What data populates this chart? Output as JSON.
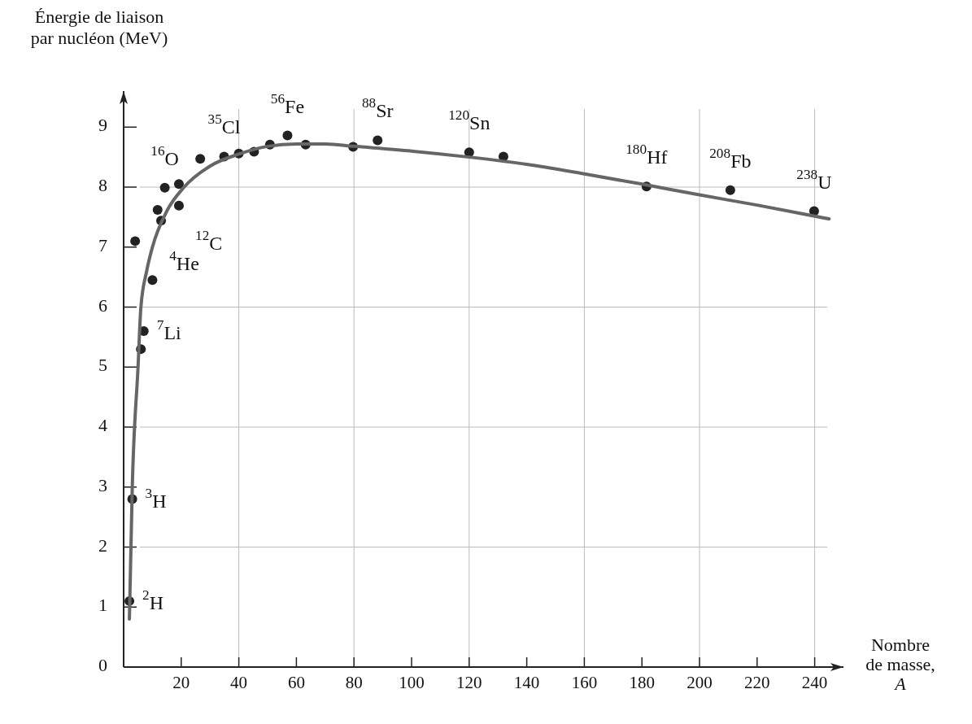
{
  "chart_data": {
    "type": "scatter",
    "xlabel": "Nombre de masse, A",
    "ylabel": "Énergie de liaison par nucléon (MeV)",
    "xlim": [
      0,
      250
    ],
    "ylim": [
      0,
      9.6
    ],
    "xticks": [
      20,
      40,
      60,
      80,
      100,
      120,
      140,
      160,
      180,
      200,
      220,
      240
    ],
    "yticks": [
      0,
      1,
      2,
      3,
      4,
      5,
      6,
      7,
      8,
      9
    ],
    "grid": true,
    "marker": "circle",
    "series": [
      {
        "color": "#222222",
        "x": [
          2,
          3,
          4,
          6,
          7,
          10,
          11.8,
          13,
          14.3,
          19.2,
          19.2,
          26.6,
          34.9,
          40,
          45.3,
          50.8,
          56.9,
          63.2,
          79.7,
          88.2,
          120,
          131.9,
          181.6,
          210.7,
          239.8
        ],
        "values": [
          1.1,
          2.8,
          7.1,
          5.3,
          5.6,
          6.45,
          7.62,
          7.44,
          7.99,
          7.69,
          8.05,
          8.47,
          8.51,
          8.56,
          8.59,
          8.71,
          8.86,
          8.71,
          8.67,
          8.78,
          8.58,
          8.51,
          8.01,
          7.95,
          7.6
        ]
      },
      {
        "type": "line",
        "color": "#666666",
        "marker": "none",
        "line_style": "solid",
        "x": [
          2,
          3,
          5,
          6,
          8,
          10,
          15,
          21,
          30,
          40,
          50,
          60,
          70,
          80,
          100,
          120,
          140,
          160,
          180,
          200,
          220,
          245
        ],
        "values": [
          0.8,
          3,
          5,
          6,
          6.6,
          7,
          7.6,
          8,
          8.35,
          8.55,
          8.68,
          8.72,
          8.72,
          8.68,
          8.6,
          8.5,
          8.38,
          8.22,
          8.05,
          7.87,
          7.7,
          7.47
        ]
      }
    ],
    "annotations": [
      {
        "text": "$^{2}$H",
        "x": 2,
        "y": 1.1
      },
      {
        "text": "$^{3}$H",
        "x": 3,
        "y": 2.8
      },
      {
        "text": "$^{7}$Li",
        "x": 7,
        "y": 5.6
      },
      {
        "text": "$^{4}$He",
        "x": 4,
        "y": 7.1
      },
      {
        "text": "$^{12}$C",
        "x": 13,
        "y": 7.44
      },
      {
        "text": "$^{16}$O",
        "x": 14.3,
        "y": 7.99
      },
      {
        "text": "$^{35}$Cl",
        "x": 34.9,
        "y": 8.51
      },
      {
        "text": "$^{56}$Fe",
        "x": 56.9,
        "y": 8.86
      },
      {
        "text": "$^{88}$Sr",
        "x": 88.2,
        "y": 8.78
      },
      {
        "text": "$^{120}$Sn",
        "x": 120,
        "y": 8.58
      },
      {
        "text": "$^{180}$Hf",
        "x": 181.6,
        "y": 8.01
      },
      {
        "text": "$^{208}$Fb",
        "x": 210.7,
        "y": 7.95
      },
      {
        "text": "$^{238}$U",
        "x": 239.8,
        "y": 7.6
      }
    ]
  }
}
